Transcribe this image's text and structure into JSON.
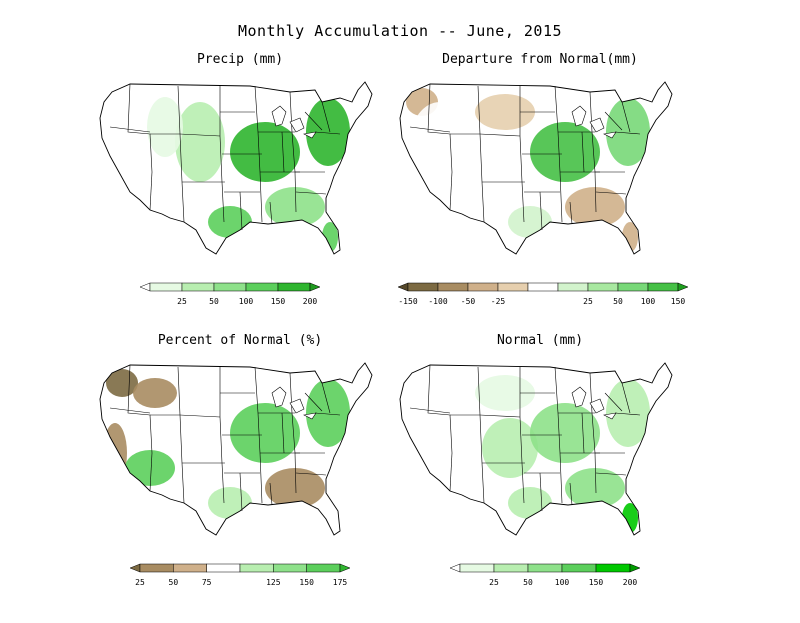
{
  "title": "Monthly Accumulation -- June, 2015",
  "panels": [
    {
      "id": "precip",
      "title": "Precip (mm)",
      "legend": {
        "colors": [
          "#ffffff",
          "#e6fae3",
          "#b8eeb0",
          "#8ee18a",
          "#5ccf5c",
          "#2fb52f",
          "#1f9a1f"
        ],
        "labels": [
          "25",
          "50",
          "100",
          "150",
          "200"
        ]
      },
      "regions": [
        {
          "name": "great-plains",
          "level": 2
        },
        {
          "name": "midwest",
          "level": 5
        },
        {
          "name": "northeast",
          "level": 5
        },
        {
          "name": "southeast",
          "level": 3
        },
        {
          "name": "texas-gulf",
          "level": 4
        },
        {
          "name": "florida",
          "level": 4
        },
        {
          "name": "west",
          "level": 0
        },
        {
          "name": "rockies",
          "level": 1
        }
      ]
    },
    {
      "id": "departure",
      "title": "Departure from Normal(mm)",
      "legend": {
        "colors": [
          "#55482a",
          "#7c6a42",
          "#a88c62",
          "#cfb08a",
          "#e6cfae",
          "#ffffff",
          "#d2f3cc",
          "#a8e8a0",
          "#78d878",
          "#46c046",
          "#1e9e1e"
        ],
        "labels": [
          "-150",
          "-100",
          "-50",
          "-25",
          "25",
          "50",
          "100",
          "150"
        ]
      },
      "regions": [
        {
          "name": "pacific-nw",
          "level": -2
        },
        {
          "name": "northern-plains",
          "level": -1
        },
        {
          "name": "midwest",
          "level": 4
        },
        {
          "name": "northeast",
          "level": 3
        },
        {
          "name": "southeast",
          "level": -2
        },
        {
          "name": "texas-gulf",
          "level": 1
        },
        {
          "name": "florida",
          "level": -2
        },
        {
          "name": "west",
          "level": 0
        }
      ]
    },
    {
      "id": "percent",
      "title": "Percent of Normal (%)",
      "legend": {
        "colors": [
          "#7c6a42",
          "#a88c62",
          "#cfb08a",
          "#ffffff",
          "#b8eeb0",
          "#8ee18a",
          "#5ccf5c",
          "#2fb52f"
        ],
        "labels": [
          "25",
          "50",
          "75",
          "125",
          "150",
          "175"
        ]
      },
      "regions": [
        {
          "name": "pacific-nw",
          "level": -3
        },
        {
          "name": "california",
          "level": -2
        },
        {
          "name": "southwest",
          "level": 3
        },
        {
          "name": "northern-rockies",
          "level": -2
        },
        {
          "name": "midwest",
          "level": 3
        },
        {
          "name": "northeast",
          "level": 3
        },
        {
          "name": "southeast",
          "level": -2
        },
        {
          "name": "texas-gulf",
          "level": 1
        }
      ]
    },
    {
      "id": "normal",
      "title": "Normal (mm)",
      "legend": {
        "colors": [
          "#ffffff",
          "#e6fae3",
          "#b8eeb0",
          "#8ee18a",
          "#5ccf5c",
          "#00c800",
          "#009a00"
        ],
        "labels": [
          "25",
          "50",
          "100",
          "150",
          "200"
        ]
      },
      "regions": [
        {
          "name": "west",
          "level": 0
        },
        {
          "name": "northern-plains",
          "level": 1
        },
        {
          "name": "central-plains",
          "level": 2
        },
        {
          "name": "midwest",
          "level": 3
        },
        {
          "name": "southeast",
          "level": 3
        },
        {
          "name": "northeast",
          "level": 2
        },
        {
          "name": "florida",
          "level": 5
        },
        {
          "name": "texas-gulf",
          "level": 2
        }
      ]
    }
  ]
}
